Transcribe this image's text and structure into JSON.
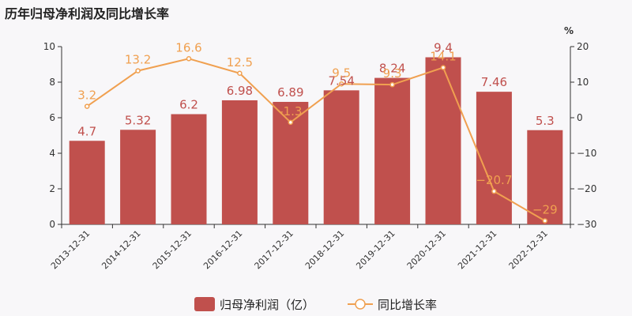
{
  "title": "历年归母净利润及同比增长率",
  "colors": {
    "bar": "#c0504d",
    "line": "#f0a050",
    "background": "#f8f7f9",
    "axis": "#333333"
  },
  "chart_data": {
    "type": "bar",
    "categories": [
      "2013-12-31",
      "2014-12-31",
      "2015-12-31",
      "2016-12-31",
      "2017-12-31",
      "2018-12-31",
      "2019-12-31",
      "2020-12-31",
      "2021-12-31",
      "2022-12-31"
    ],
    "series": [
      {
        "name": "归母净利润（亿）",
        "type": "bar",
        "axis": "left",
        "values": [
          4.7,
          5.32,
          6.2,
          6.98,
          6.89,
          7.54,
          8.24,
          9.4,
          7.46,
          5.3
        ],
        "labels": [
          "4.7",
          "5.32",
          "6.2",
          "6.98",
          "6.89",
          "7.54",
          "8.24",
          "9.4",
          "7.46",
          "5.3"
        ]
      },
      {
        "name": "同比增长率",
        "type": "line",
        "axis": "right",
        "values": [
          3.2,
          13.2,
          16.6,
          12.5,
          -1.3,
          9.5,
          9.3,
          14.1,
          -20.7,
          -29
        ],
        "labels": [
          "3.2",
          "13.2",
          "16.6",
          "12.5",
          "-1.3",
          "9.5",
          "9.3",
          "14.1",
          "−20.7",
          "−29"
        ]
      }
    ],
    "y_left": {
      "range": [
        0,
        10
      ],
      "ticks": [
        "0",
        "2",
        "4",
        "6",
        "8",
        "10"
      ]
    },
    "y_right": {
      "range": [
        -30,
        20
      ],
      "ticks": [
        "−30",
        "−20",
        "−10",
        "0",
        "10",
        "20"
      ],
      "unit": "%"
    },
    "legend": {
      "placement": "bottom-center"
    },
    "grid": false
  }
}
